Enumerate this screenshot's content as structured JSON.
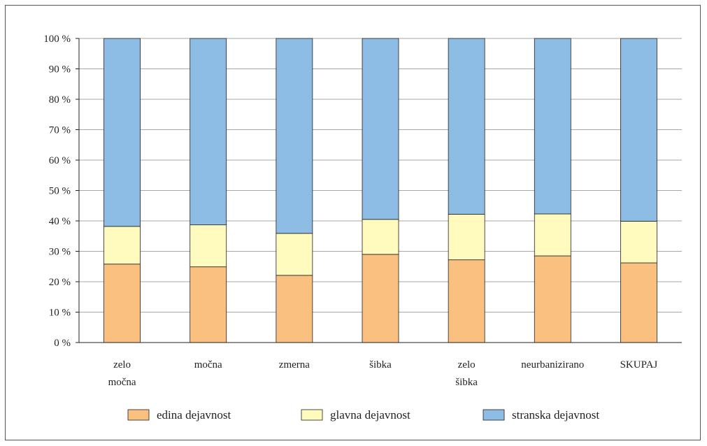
{
  "chart_data": {
    "type": "bar",
    "stacked": true,
    "categories": [
      [
        "zelo",
        "močna"
      ],
      [
        "močna"
      ],
      [
        "zmerna"
      ],
      [
        "šibka"
      ],
      [
        "zelo",
        "šibka"
      ],
      [
        "neurbanizirano"
      ],
      [
        "SKUPAJ"
      ]
    ],
    "series": [
      {
        "name": "edina dejavnost",
        "color": "#fac080",
        "values": [
          25.8,
          24.9,
          22.1,
          29.0,
          27.2,
          28.5,
          26.2
        ]
      },
      {
        "name": "glavna dejavnost",
        "color": "#fffbbe",
        "values": [
          12.4,
          13.8,
          13.8,
          11.5,
          15.0,
          13.8,
          13.7
        ]
      },
      {
        "name": "stranska dejavnost",
        "color": "#8dbde5",
        "values": [
          61.8,
          61.3,
          64.1,
          59.5,
          57.8,
          57.7,
          60.1
        ]
      }
    ],
    "yticks": [
      "0 %",
      "10 %",
      "20 %",
      "30 %",
      "40 %",
      "50 %",
      "60 %",
      "70 %",
      "80 %",
      "90 %",
      "100 %"
    ],
    "ylim": [
      0,
      100
    ],
    "grid": true,
    "legend_position": "bottom",
    "title": "",
    "xlabel": "",
    "ylabel": ""
  }
}
